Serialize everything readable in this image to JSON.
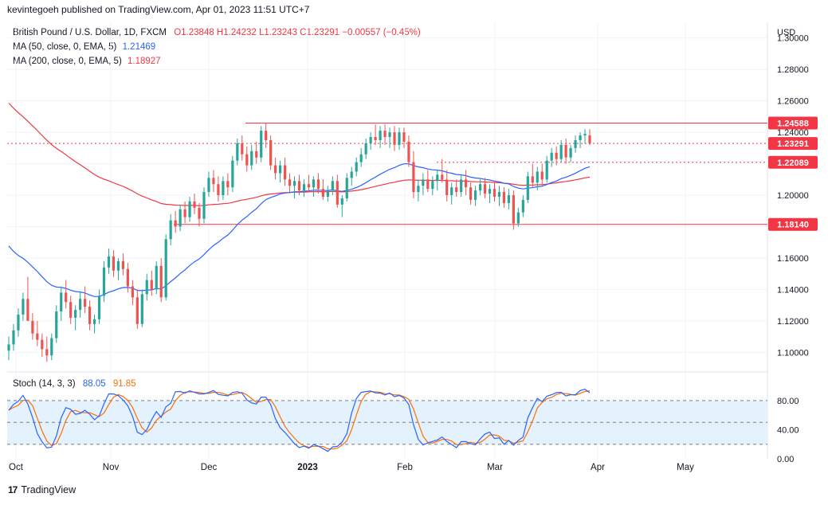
{
  "header": {
    "text": "kevintegoeh published on TradingView.com, Apr 01, 2023 11:51 UTC+7"
  },
  "legend": {
    "symbol": "British Pound / U.S. Dollar, 1D, FXCM",
    "ohlc": "O1.23848  H1.24232  L1.23243  C1.23291  −0.00557 (−0.45%)",
    "ma50_label": "MA (50, close, 0, EMA, 5)",
    "ma50_value": "1.21469",
    "ma200_label": "MA (200, close, 0, EMA, 5)",
    "ma200_value": "1.18927"
  },
  "currency": "USD",
  "stoch_legend": {
    "label": "Stoch (14, 3, 3)",
    "k_value": "88.05",
    "d_value": "91.85"
  },
  "brand": {
    "name": "TradingView"
  },
  "colors": {
    "up": "#26a69a",
    "down": "#ef5350",
    "ma50": "#2962ff",
    "ma200": "#f23645",
    "level": "#f23645",
    "stochK": "#2962ff",
    "stochD": "#ff6d00",
    "stochBand": "#e3f2fd"
  },
  "chart_data": {
    "type": "candlestick",
    "y_ticks": [
      "1.30000",
      "1.28000",
      "1.26000",
      "1.24000",
      "1.22000",
      "1.20000",
      "1.18000",
      "1.16000",
      "1.14000",
      "1.12000",
      "1.10000"
    ],
    "ylim": [
      1.088,
      1.31
    ],
    "x_labels": [
      "Oct",
      "Nov",
      "Dec",
      "2023",
      "Feb",
      "Mar",
      "Apr",
      "May"
    ],
    "price_labels": [
      "1.24588",
      "1.23291",
      "1.22089",
      "1.18140"
    ],
    "levels": [
      {
        "value": 1.24588,
        "style": "solid"
      },
      {
        "value": 1.23291,
        "style": "dotted"
      },
      {
        "value": 1.22089,
        "style": "dotted"
      },
      {
        "value": 1.1814,
        "style": "solid"
      }
    ],
    "stoch": {
      "y_ticks": [
        "80.00",
        "40.00",
        "0.00"
      ],
      "upper": 80,
      "lower": 20
    }
  }
}
